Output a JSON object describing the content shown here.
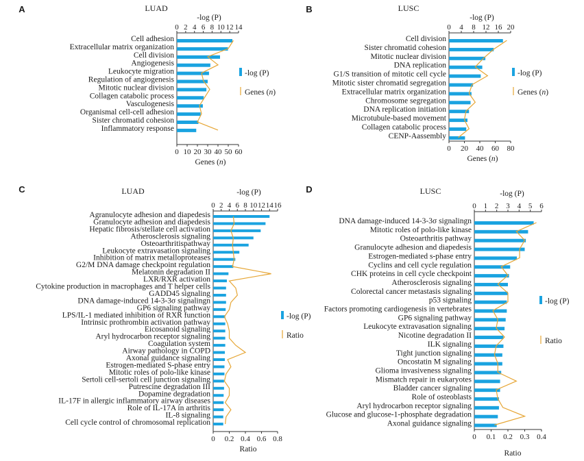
{
  "colors": {
    "bar": "#1aa3e0",
    "line": "#e6a533",
    "axis": "#333333"
  },
  "chart_data": [
    {
      "panel": "A",
      "title": "LUAD",
      "type": "bar",
      "top_axis": {
        "label": "-log (P)",
        "ticks": [
          0,
          2,
          4,
          6,
          8,
          10,
          12,
          14
        ],
        "range": [
          0,
          14
        ]
      },
      "bottom_axis": {
        "label": "Genes (n)",
        "ticks": [
          0,
          10,
          20,
          30,
          40,
          50,
          60
        ],
        "range": [
          0,
          60
        ]
      },
      "legend": {
        "bar": "-log (P)",
        "line": "Genes (n)"
      },
      "categories": [
        "Cell adhesion",
        "Extracellular matrix organization",
        "Cell division",
        "Angiogenesis",
        "Leukocyte migration",
        "Regulation of angiogenesis",
        "Mitotic nuclear division",
        "Collagen catabolic process",
        "Vasculogenesis",
        "Organismal cell-cell adhesion",
        "Sister chromatid cohesion",
        "Inflammatory response"
      ],
      "series": [
        {
          "name": "-log (P)",
          "kind": "bar",
          "values": [
            12.6,
            11.6,
            9.8,
            7.6,
            7.3,
            7.0,
            6.7,
            6.1,
            5.9,
            5.4,
            4.9,
            4.4
          ]
        },
        {
          "name": "Genes (n)",
          "kind": "line",
          "values": [
            55,
            50,
            30,
            40,
            24,
            26,
            32,
            27,
            22,
            24,
            20,
            40
          ]
        }
      ]
    },
    {
      "panel": "B",
      "title": "LUSC",
      "type": "bar",
      "top_axis": {
        "label": "-log (P)",
        "ticks": [
          0,
          4,
          8,
          12,
          16,
          20
        ],
        "range": [
          0,
          20
        ]
      },
      "bottom_axis": {
        "label": "Genes (n)",
        "ticks": [
          0,
          20,
          40,
          60,
          80
        ],
        "range": [
          0,
          80
        ]
      },
      "legend": {
        "bar": "-log (P)",
        "line": "Genes (n)"
      },
      "categories": [
        "Cell division",
        "Sister chromatid cohesion",
        "Mitotic nuclear division",
        "DNA replication",
        "G1/S transition of mitotic cell cycle",
        "Mitotic sister chromatid segregation",
        "Extracellular matrix organization",
        "Chromosome segregation",
        "DNA replication initiation",
        "Microtubule-based movement",
        "Collagen catabolic process",
        "CENP-Aassembly"
      ],
      "series": [
        {
          "name": "-log (P)",
          "kind": "bar",
          "values": [
            17.5,
            14.5,
            11.8,
            10.8,
            10.3,
            7.8,
            7.3,
            7.0,
            6.5,
            6.0,
            5.6,
            5.2
          ]
        },
        {
          "name": "Genes (n)",
          "kind": "line",
          "values": [
            75,
            58,
            45,
            34,
            50,
            30,
            26,
            34,
            22,
            20,
            26,
            12
          ]
        }
      ]
    },
    {
      "panel": "C",
      "title": "LUAD",
      "type": "bar",
      "top_axis": {
        "label": "-log (P)",
        "ticks": [
          0,
          2,
          4,
          6,
          8,
          10,
          12,
          14,
          16
        ],
        "range": [
          0,
          16
        ]
      },
      "bottom_axis": {
        "label": "Ratio",
        "ticks": [
          0,
          0.2,
          0.4,
          0.6,
          0.8
        ],
        "range": [
          0,
          0.8
        ]
      },
      "legend": {
        "bar": "-log (P)",
        "line": "Ratio"
      },
      "categories": [
        "Agranulocyte adhesion and diapedesis",
        "Granulocyte adhesion and diapedesis",
        "Hepatic fibrosis/stellate cell activation",
        "Atherosclerosis signaling",
        "Osteoarthritispathway",
        "Leukocyte extravasation signaling",
        "Inhibition of matrix metalloproteases",
        "G2/M DNA damage checkpoint regulation",
        "Melatonin degradation II",
        "LXR/RXR activation",
        "Cytokine production in macrophages and T helper cells",
        "GADD45 signaling",
        "DNA damage-induced 14-3-3σ signalingn",
        "GP6 signaling pathway",
        "LPS/IL-1 mediated inhibition of RXR function",
        "Intrinsic prothrombin activation pathway",
        "Eicosanoid signaling",
        "Aryl hydrocarbon receptor signaling",
        "Coagulation system",
        "Airway pathology in COPD",
        "Axonal guidance signaling",
        "Estrogen-mediated S-phase entry",
        "Mitotic roles of polo-like kinase",
        "Sertoli cell-sertoli cell junction signaling",
        "Putrescine degradation III",
        "Dopamine degradation",
        "IL-17F in allergic inflammatory airway diseases",
        "Role of IL-17A in arthritis",
        "IL-8 signaling",
        "Cell cycle control of chromosomal replication"
      ],
      "series": [
        {
          "name": "-log (P)",
          "kind": "bar",
          "values": [
            14.0,
            13.0,
            11.8,
            10.0,
            8.8,
            6.5,
            5.5,
            5.0,
            3.8,
            3.4,
            3.2,
            3.2,
            3.2,
            3.1,
            3.0,
            3.0,
            3.0,
            3.0,
            3.0,
            2.9,
            2.9,
            2.8,
            2.8,
            2.7,
            2.7,
            2.6,
            2.6,
            2.6,
            2.5,
            2.5
          ]
        },
        {
          "name": "Ratio",
          "kind": "line",
          "values": [
            0.25,
            0.26,
            0.22,
            0.25,
            0.24,
            0.25,
            0.26,
            0.24,
            0.72,
            0.2,
            0.28,
            0.3,
            0.22,
            0.2,
            0.14,
            0.18,
            0.2,
            0.2,
            0.28,
            0.4,
            0.18,
            0.22,
            0.16,
            0.14,
            0.2,
            0.2,
            0.15,
            0.22,
            0.16,
            0.15
          ]
        }
      ]
    },
    {
      "panel": "D",
      "title": "LUSC",
      "type": "bar",
      "top_axis": {
        "label": "-log (P)",
        "ticks": [
          0,
          1,
          2,
          3,
          4,
          5,
          6
        ],
        "range": [
          0,
          6
        ]
      },
      "bottom_axis": {
        "label": "Ratio",
        "ticks": [
          0,
          0.1,
          0.2,
          0.3,
          0.4
        ],
        "range": [
          0,
          0.4
        ]
      },
      "legend": {
        "bar": "-log (P)",
        "line": "Ratio"
      },
      "categories": [
        "DNA damage-induced 14-3-3σ signalingn",
        "Mitotic roles of polo-like kinase",
        "Osteoarthritis pathway",
        "Granulocyte adhesion and diapedesis",
        "Estrogen-mediated s-phase entry",
        "Cyclins and cell cycle regulation",
        "CHK proteins in cell cycle checkpoint",
        "Atherosclerosis signaling",
        "Colorectal cancer metastasis signaling",
        "p53 signaling",
        "Factors promoting cardiogenesis in vertebrates",
        "GP6 signaling pathway",
        "Leukocyte extravasation signaling",
        "Nicotine degradation II",
        "ILK signaling",
        "Tight junction signaling",
        "Oncostatin M signaling",
        "Glioma invasiveness signaling",
        "Mismatch repair in eukaryotes",
        "Bladder cancer signaling",
        "Role of osteoblasts",
        "Aryl hydrocarbon receptor signaling",
        "Glucose and glucose-1-phosphate degradation",
        "Axonal guidance signaling"
      ],
      "series": [
        {
          "name": "-log (P)",
          "kind": "bar",
          "values": [
            5.3,
            4.8,
            4.6,
            4.5,
            3.8,
            3.2,
            3.1,
            3.0,
            3.0,
            2.9,
            2.9,
            2.8,
            2.7,
            2.6,
            2.6,
            2.5,
            2.5,
            2.4,
            2.3,
            2.3,
            2.2,
            2.2,
            2.1,
            2.0
          ]
        },
        {
          "name": "Ratio",
          "kind": "line",
          "values": [
            0.37,
            0.25,
            0.3,
            0.27,
            0.27,
            0.16,
            0.2,
            0.14,
            0.2,
            0.2,
            0.11,
            0.14,
            0.13,
            0.18,
            0.13,
            0.12,
            0.14,
            0.14,
            0.25,
            0.13,
            0.14,
            0.17,
            0.3,
            0.12
          ]
        }
      ]
    }
  ]
}
